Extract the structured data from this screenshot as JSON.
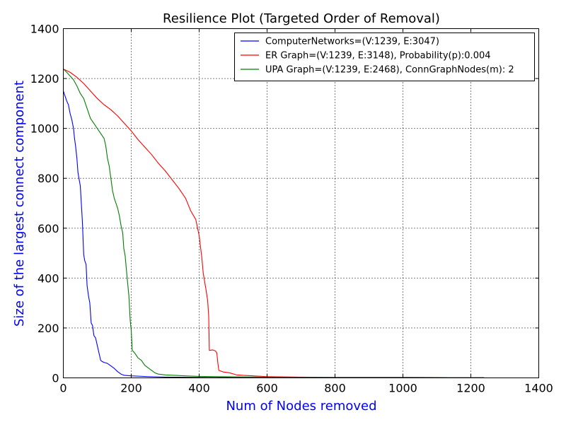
{
  "chart_data": {
    "type": "line",
    "title": "Resilience Plot (Targeted Order of Removal)",
    "xlabel": "Num of Nodes removed",
    "ylabel": "Size of the largest connect component",
    "xlim": [
      0,
      1400
    ],
    "ylim": [
      0,
      1400
    ],
    "xticks": [
      0,
      200,
      400,
      600,
      800,
      1000,
      1200,
      1400
    ],
    "yticks": [
      0,
      200,
      400,
      600,
      800,
      1000,
      1200,
      1400
    ],
    "grid": true,
    "legend_position": "top-right",
    "series": [
      {
        "name": "ComputerNetworks=(V:1239, E:3047)",
        "color": "#0000ff",
        "points": [
          [
            0,
            1150
          ],
          [
            5,
            1130
          ],
          [
            10,
            1110
          ],
          [
            15,
            1095
          ],
          [
            20,
            1060
          ],
          [
            25,
            1035
          ],
          [
            30,
            1000
          ],
          [
            33,
            960
          ],
          [
            36,
            930
          ],
          [
            40,
            880
          ],
          [
            43,
            825
          ],
          [
            46,
            800
          ],
          [
            50,
            770
          ],
          [
            53,
            700
          ],
          [
            56,
            630
          ],
          [
            60,
            495
          ],
          [
            63,
            470
          ],
          [
            67,
            455
          ],
          [
            70,
            370
          ],
          [
            74,
            330
          ],
          [
            78,
            300
          ],
          [
            82,
            220
          ],
          [
            86,
            210
          ],
          [
            90,
            170
          ],
          [
            95,
            160
          ],
          [
            100,
            130
          ],
          [
            105,
            100
          ],
          [
            110,
            70
          ],
          [
            115,
            65
          ],
          [
            120,
            62
          ],
          [
            130,
            58
          ],
          [
            140,
            48
          ],
          [
            150,
            38
          ],
          [
            160,
            25
          ],
          [
            170,
            15
          ],
          [
            180,
            10
          ],
          [
            200,
            8
          ],
          [
            250,
            5
          ],
          [
            300,
            3
          ],
          [
            400,
            2
          ],
          [
            500,
            1
          ],
          [
            1239,
            1
          ]
        ]
      },
      {
        "name": "ER Graph=(V:1239, E:3148), Probability(p):0.004",
        "color": "#ff0000",
        "points": [
          [
            0,
            1238
          ],
          [
            20,
            1225
          ],
          [
            40,
            1205
          ],
          [
            60,
            1180
          ],
          [
            80,
            1150
          ],
          [
            100,
            1120
          ],
          [
            120,
            1095
          ],
          [
            140,
            1075
          ],
          [
            160,
            1050
          ],
          [
            180,
            1020
          ],
          [
            200,
            990
          ],
          [
            220,
            955
          ],
          [
            240,
            925
          ],
          [
            260,
            895
          ],
          [
            280,
            860
          ],
          [
            300,
            830
          ],
          [
            320,
            795
          ],
          [
            340,
            760
          ],
          [
            360,
            720
          ],
          [
            375,
            670
          ],
          [
            390,
            635
          ],
          [
            400,
            570
          ],
          [
            408,
            480
          ],
          [
            412,
            420
          ],
          [
            415,
            395
          ],
          [
            420,
            355
          ],
          [
            425,
            310
          ],
          [
            428,
            250
          ],
          [
            430,
            110
          ],
          [
            440,
            112
          ],
          [
            448,
            108
          ],
          [
            452,
            100
          ],
          [
            455,
            60
          ],
          [
            458,
            30
          ],
          [
            470,
            24
          ],
          [
            490,
            20
          ],
          [
            510,
            12
          ],
          [
            530,
            10
          ],
          [
            560,
            8
          ],
          [
            600,
            5
          ],
          [
            700,
            3
          ],
          [
            800,
            2
          ],
          [
            1000,
            2
          ],
          [
            1239,
            1
          ]
        ]
      },
      {
        "name": "UPA Graph=(V:1239, E:2468), ConnGraphNodes(m): 2",
        "color": "#008000",
        "points": [
          [
            0,
            1238
          ],
          [
            10,
            1225
          ],
          [
            20,
            1210
          ],
          [
            30,
            1195
          ],
          [
            40,
            1170
          ],
          [
            50,
            1140
          ],
          [
            60,
            1120
          ],
          [
            70,
            1080
          ],
          [
            80,
            1040
          ],
          [
            90,
            1020
          ],
          [
            100,
            1000
          ],
          [
            110,
            980
          ],
          [
            120,
            960
          ],
          [
            125,
            930
          ],
          [
            130,
            880
          ],
          [
            135,
            850
          ],
          [
            140,
            800
          ],
          [
            145,
            750
          ],
          [
            150,
            720
          ],
          [
            160,
            680
          ],
          [
            165,
            650
          ],
          [
            170,
            610
          ],
          [
            175,
            580
          ],
          [
            178,
            520
          ],
          [
            182,
            490
          ],
          [
            188,
            400
          ],
          [
            193,
            330
          ],
          [
            197,
            230
          ],
          [
            200,
            190
          ],
          [
            203,
            110
          ],
          [
            210,
            100
          ],
          [
            220,
            80
          ],
          [
            230,
            70
          ],
          [
            240,
            50
          ],
          [
            250,
            40
          ],
          [
            260,
            30
          ],
          [
            270,
            20
          ],
          [
            280,
            15
          ],
          [
            300,
            12
          ],
          [
            330,
            10
          ],
          [
            360,
            8
          ],
          [
            400,
            6
          ],
          [
            450,
            5
          ],
          [
            500,
            4
          ],
          [
            600,
            3
          ],
          [
            800,
            2
          ],
          [
            1000,
            2
          ],
          [
            1239,
            1
          ]
        ]
      }
    ]
  }
}
